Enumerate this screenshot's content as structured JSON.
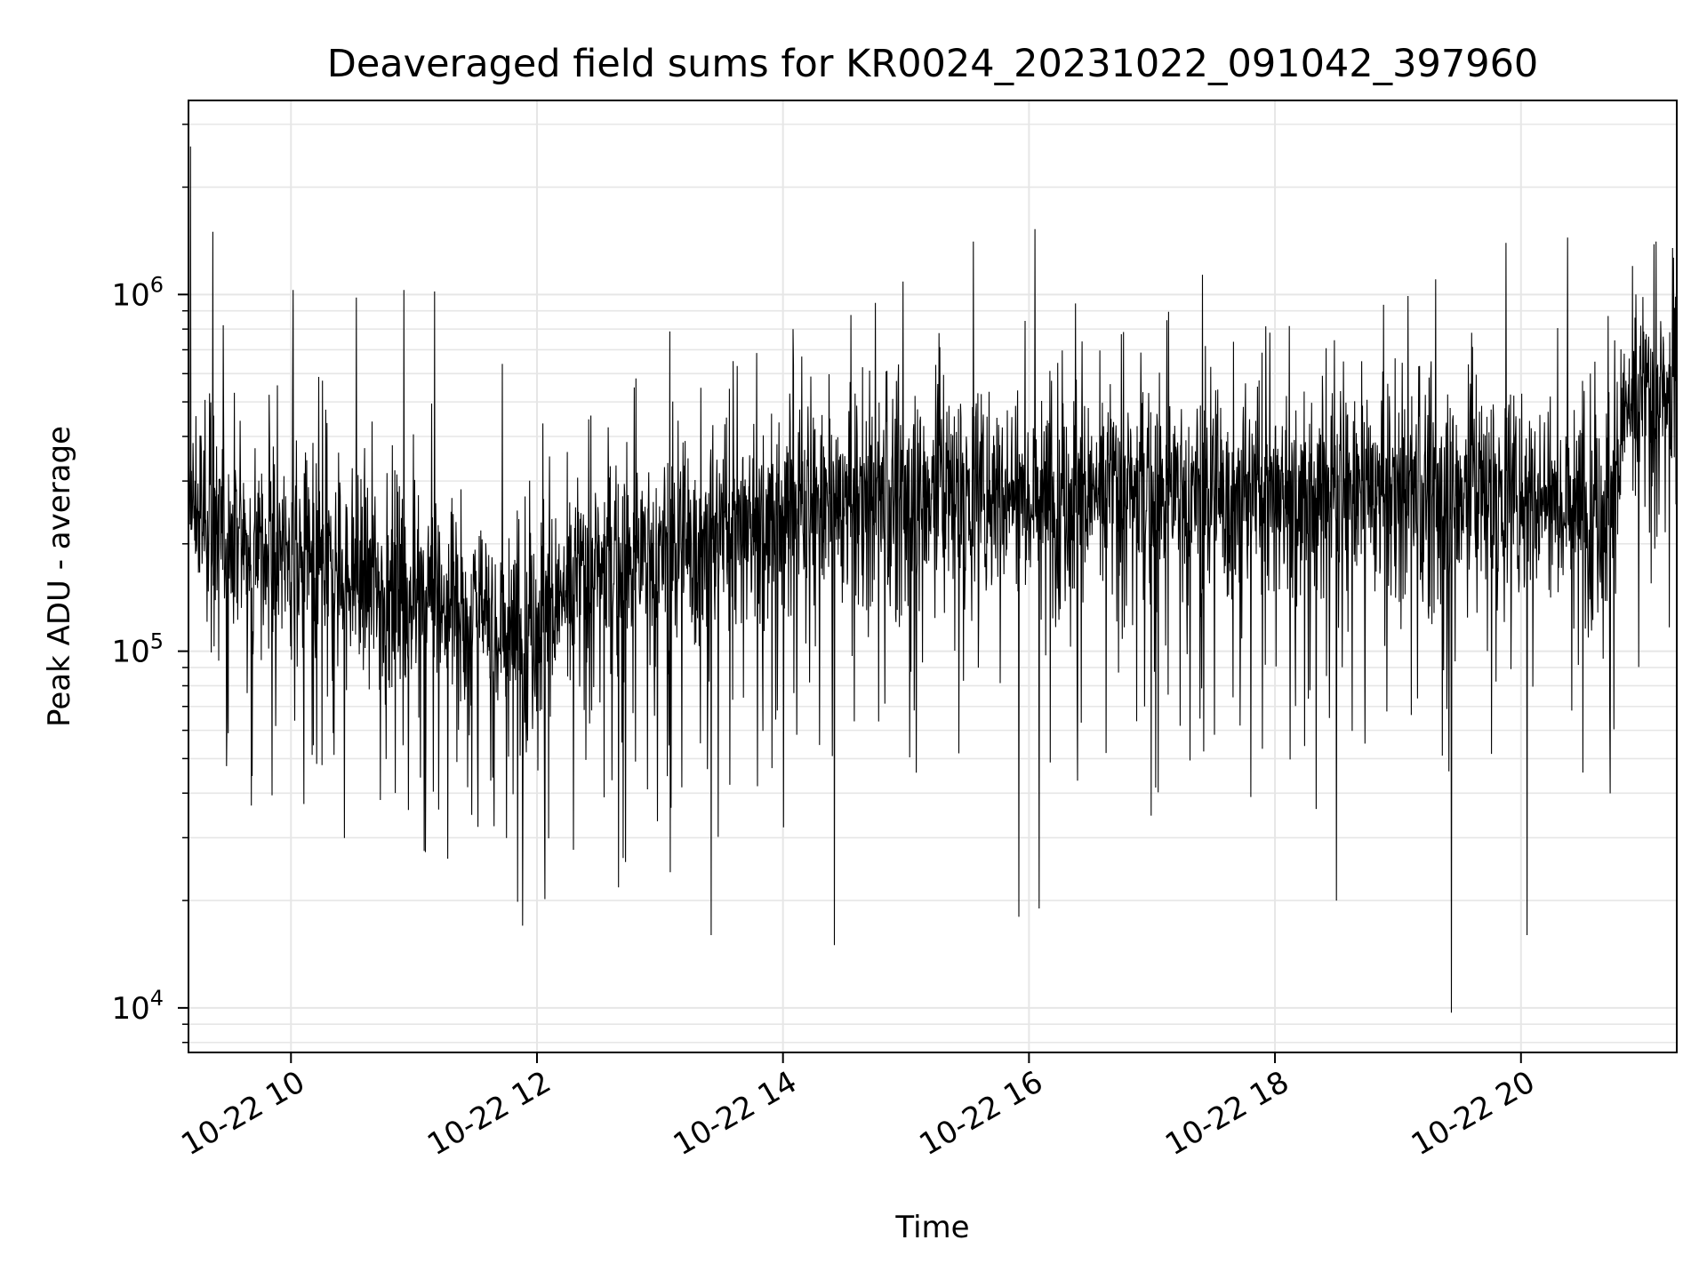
{
  "chart_data": {
    "type": "line",
    "title": "Deaveraged field sums for KR0024_20231022_091042_397960",
    "xlabel": "Time",
    "ylabel": "Peak ADU - average",
    "x_range": [
      "2023-10-22 09:10",
      "2023-10-22 21:16"
    ],
    "y_scale": "log",
    "ylim": [
      7500,
      3500000
    ],
    "x_ticks": [
      {
        "t": "2023-10-22 10:00",
        "label": "10-22 10"
      },
      {
        "t": "2023-10-22 12:00",
        "label": "10-22 12"
      },
      {
        "t": "2023-10-22 14:00",
        "label": "10-22 14"
      },
      {
        "t": "2023-10-22 16:00",
        "label": "10-22 16"
      },
      {
        "t": "2023-10-22 18:00",
        "label": "10-22 18"
      },
      {
        "t": "2023-10-22 20:00",
        "label": "10-22 20"
      }
    ],
    "y_ticks": [
      {
        "value": 10000,
        "base": "10",
        "exp": "4"
      },
      {
        "value": 100000,
        "base": "10",
        "exp": "5"
      },
      {
        "value": 1000000,
        "base": "10",
        "exp": "6"
      }
    ],
    "grid": true,
    "line_color": "#000000",
    "grid_color": "#e6e6e6",
    "series": [
      {
        "typical_level_points": [
          [
            "2023-10-22 09:10",
            250000
          ],
          [
            "2023-10-22 10:00",
            180000
          ],
          [
            "2023-10-22 11:00",
            150000
          ],
          [
            "2023-10-22 11:50",
            115000
          ],
          [
            "2023-10-22 12:30",
            170000
          ],
          [
            "2023-10-22 13:00",
            190000
          ],
          [
            "2023-10-22 14:00",
            250000
          ],
          [
            "2023-10-22 15:00",
            280000
          ],
          [
            "2023-10-22 16:00",
            285000
          ],
          [
            "2023-10-22 17:00",
            280000
          ],
          [
            "2023-10-22 18:00",
            280000
          ],
          [
            "2023-10-22 19:00",
            285000
          ],
          [
            "2023-10-22 20:00",
            280000
          ],
          [
            "2023-10-22 20:45",
            260000
          ],
          [
            "2023-10-22 20:50",
            480000
          ],
          [
            "2023-10-22 21:16",
            520000
          ]
        ],
        "notable_points": [
          [
            "2023-10-22 09:11",
            2600000
          ],
          [
            "2023-10-22 09:22",
            1500000
          ],
          [
            "2023-10-22 10:01",
            1030000
          ],
          [
            "2023-10-22 10:32",
            980000
          ],
          [
            "2023-10-22 10:55",
            1030000
          ],
          [
            "2023-10-22 11:10",
            1020000
          ],
          [
            "2023-10-22 11:53",
            17000
          ],
          [
            "2023-10-22 13:05",
            24000
          ],
          [
            "2023-10-22 13:25",
            16000
          ],
          [
            "2023-10-22 14:05",
            800000
          ],
          [
            "2023-10-22 14:25",
            15000
          ],
          [
            "2023-10-22 15:55",
            18000
          ],
          [
            "2023-10-22 16:05",
            19000
          ],
          [
            "2023-10-22 18:30",
            20000
          ],
          [
            "2023-10-22 19:26",
            9700
          ],
          [
            "2023-10-22 20:03",
            16000
          ],
          [
            "2023-10-22 20:56",
            1000000
          ],
          [
            "2023-10-22 21:14",
            1350000
          ]
        ]
      }
    ]
  }
}
